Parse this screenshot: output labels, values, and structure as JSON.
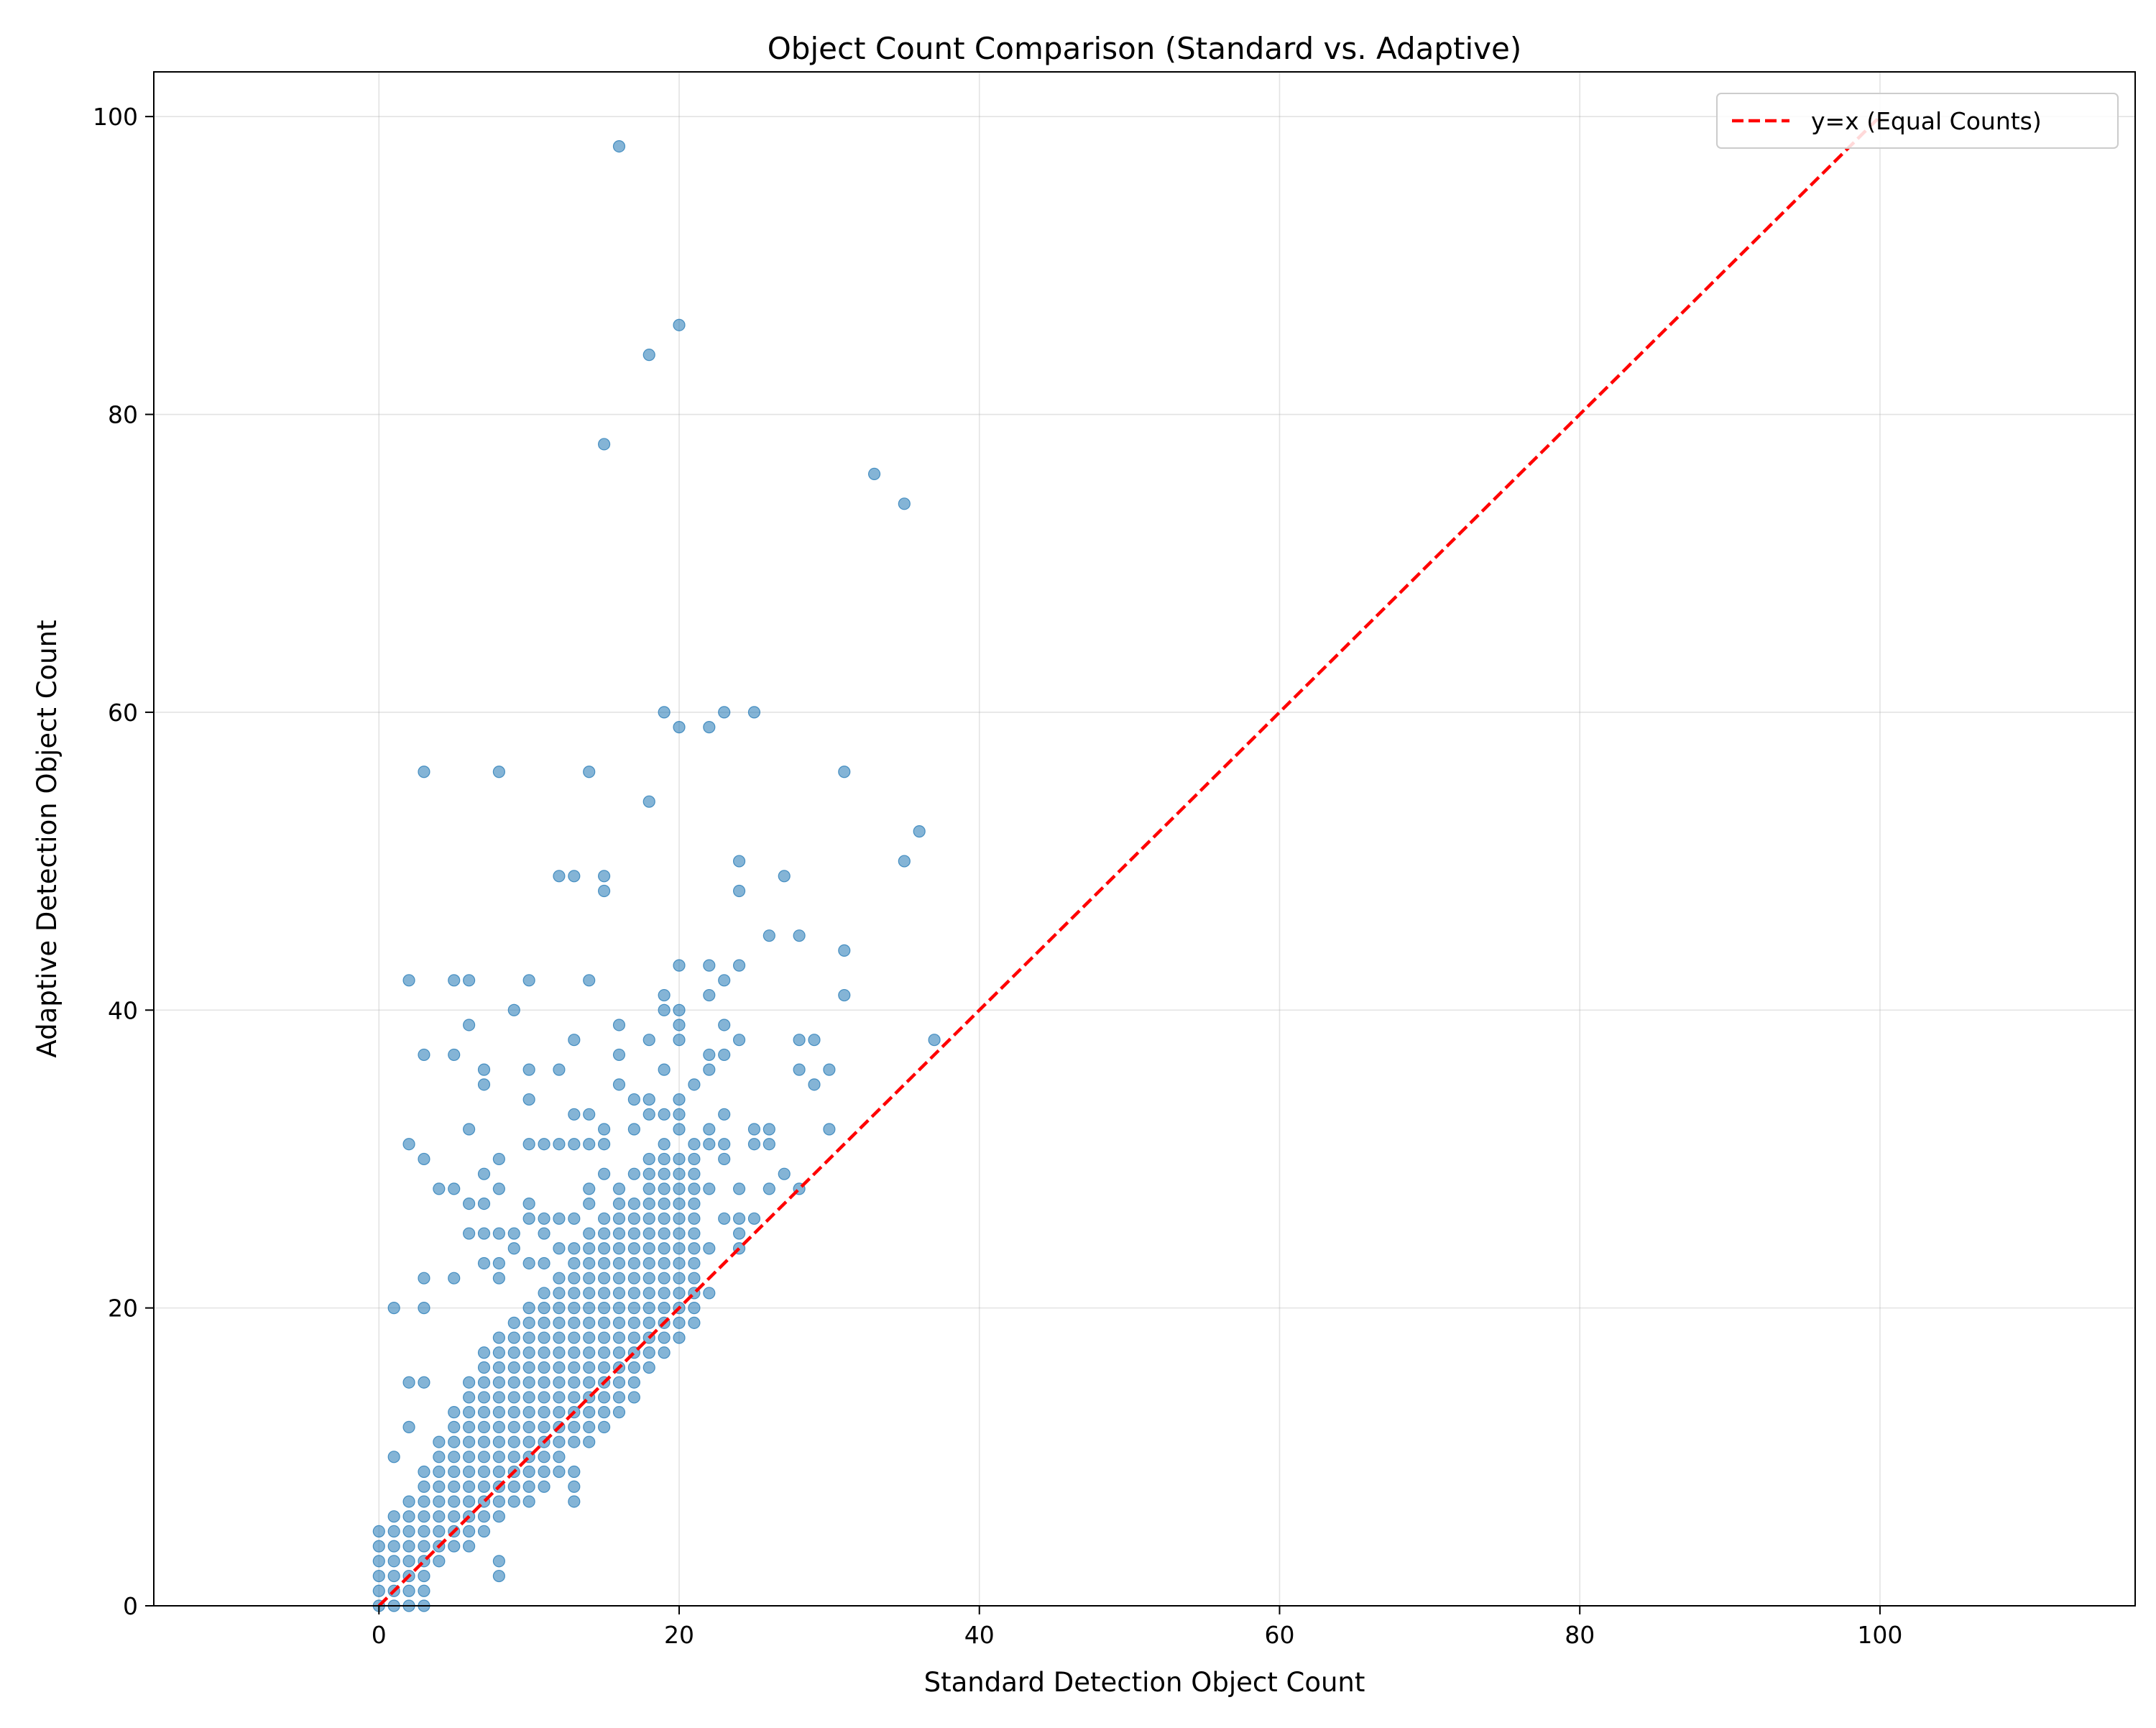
{
  "chart_data": {
    "type": "scatter",
    "title": "Object Count Comparison (Standard vs. Adaptive)",
    "xlabel": "Standard Detection Object Count",
    "ylabel": "Adaptive Detection Object Count",
    "xlim": [
      -15,
      117
    ],
    "ylim": [
      0,
      103
    ],
    "xticks": [
      0,
      20,
      40,
      60,
      80,
      100
    ],
    "yticks": [
      0,
      20,
      40,
      60,
      80,
      100
    ],
    "grid": true,
    "legend": {
      "placement": "top-right",
      "entries": [
        "y=x (Equal Counts)"
      ]
    },
    "reference_line": {
      "label": "y=x (Equal Counts)",
      "color": "#ff0000",
      "style": "dashed",
      "from": [
        0,
        0
      ],
      "to": [
        100,
        100
      ]
    },
    "colors": {
      "points": "#1f77b4",
      "reference": "#ff0000"
    },
    "outliers": [
      [
        16,
        98
      ],
      [
        20,
        86
      ],
      [
        18,
        84
      ],
      [
        15,
        78
      ],
      [
        33,
        76
      ],
      [
        35,
        74
      ],
      [
        19,
        60
      ],
      [
        23,
        60
      ],
      [
        25,
        60
      ],
      [
        20,
        59
      ],
      [
        22,
        59
      ],
      [
        3,
        56
      ],
      [
        8,
        56
      ],
      [
        14,
        56
      ],
      [
        31,
        56
      ],
      [
        18,
        54
      ],
      [
        36,
        52
      ],
      [
        24,
        50
      ],
      [
        35,
        50
      ],
      [
        12,
        49
      ],
      [
        13,
        49
      ],
      [
        15,
        49
      ],
      [
        27,
        49
      ],
      [
        15,
        48
      ],
      [
        24,
        48
      ],
      [
        26,
        45
      ],
      [
        28,
        45
      ],
      [
        31,
        44
      ],
      [
        20,
        43
      ],
      [
        22,
        43
      ],
      [
        24,
        43
      ],
      [
        2,
        42
      ],
      [
        5,
        42
      ],
      [
        6,
        42
      ],
      [
        10,
        42
      ],
      [
        14,
        42
      ],
      [
        23,
        42
      ],
      [
        19,
        41
      ],
      [
        22,
        41
      ],
      [
        31,
        41
      ],
      [
        9,
        40
      ],
      [
        19,
        40
      ],
      [
        20,
        40
      ],
      [
        6,
        39
      ],
      [
        16,
        39
      ],
      [
        20,
        39
      ],
      [
        23,
        39
      ],
      [
        13,
        38
      ],
      [
        18,
        38
      ],
      [
        20,
        38
      ],
      [
        24,
        38
      ],
      [
        28,
        38
      ],
      [
        29,
        38
      ],
      [
        37,
        38
      ],
      [
        3,
        37
      ],
      [
        5,
        37
      ],
      [
        16,
        37
      ],
      [
        22,
        37
      ],
      [
        23,
        37
      ],
      [
        7,
        36
      ],
      [
        10,
        36
      ],
      [
        12,
        36
      ],
      [
        19,
        36
      ],
      [
        22,
        36
      ],
      [
        28,
        36
      ],
      [
        30,
        36
      ],
      [
        7,
        35
      ],
      [
        16,
        35
      ],
      [
        21,
        35
      ],
      [
        29,
        35
      ],
      [
        10,
        34
      ],
      [
        17,
        34
      ],
      [
        18,
        34
      ],
      [
        20,
        34
      ],
      [
        13,
        33
      ],
      [
        14,
        33
      ],
      [
        18,
        33
      ],
      [
        19,
        33
      ],
      [
        20,
        33
      ],
      [
        23,
        33
      ],
      [
        6,
        32
      ],
      [
        15,
        32
      ],
      [
        17,
        32
      ],
      [
        20,
        32
      ],
      [
        22,
        32
      ],
      [
        25,
        32
      ],
      [
        26,
        32
      ],
      [
        30,
        32
      ],
      [
        2,
        31
      ],
      [
        10,
        31
      ],
      [
        11,
        31
      ],
      [
        12,
        31
      ],
      [
        13,
        31
      ],
      [
        14,
        31
      ],
      [
        15,
        31
      ],
      [
        19,
        31
      ],
      [
        22,
        31
      ],
      [
        23,
        31
      ],
      [
        25,
        31
      ],
      [
        26,
        31
      ],
      [
        3,
        30
      ],
      [
        8,
        30
      ],
      [
        18,
        30
      ],
      [
        19,
        30
      ],
      [
        23,
        30
      ],
      [
        7,
        29
      ],
      [
        15,
        29
      ],
      [
        17,
        29
      ],
      [
        18,
        29
      ],
      [
        19,
        29
      ],
      [
        27,
        29
      ],
      [
        4,
        28
      ],
      [
        5,
        28
      ],
      [
        8,
        28
      ],
      [
        14,
        28
      ],
      [
        16,
        28
      ],
      [
        22,
        28
      ],
      [
        24,
        28
      ],
      [
        26,
        28
      ],
      [
        28,
        28
      ],
      [
        6,
        27
      ],
      [
        7,
        27
      ],
      [
        10,
        27
      ],
      [
        14,
        27
      ],
      [
        16,
        27
      ],
      [
        19,
        27
      ],
      [
        20,
        27
      ],
      [
        10,
        26
      ],
      [
        11,
        26
      ],
      [
        12,
        26
      ],
      [
        13,
        26
      ],
      [
        15,
        26
      ],
      [
        17,
        26
      ],
      [
        18,
        26
      ],
      [
        20,
        26
      ],
      [
        23,
        26
      ],
      [
        24,
        26
      ],
      [
        25,
        26
      ],
      [
        6,
        25
      ],
      [
        7,
        25
      ],
      [
        8,
        25
      ],
      [
        9,
        25
      ],
      [
        11,
        25
      ],
      [
        14,
        25
      ],
      [
        16,
        25
      ],
      [
        19,
        25
      ],
      [
        24,
        25
      ],
      [
        9,
        24
      ],
      [
        12,
        24
      ],
      [
        13,
        24
      ],
      [
        17,
        24
      ],
      [
        21,
        24
      ],
      [
        22,
        24
      ],
      [
        24,
        24
      ],
      [
        7,
        23
      ],
      [
        8,
        23
      ],
      [
        10,
        23
      ],
      [
        11,
        23
      ],
      [
        15,
        23
      ],
      [
        18,
        23
      ],
      [
        21,
        23
      ],
      [
        3,
        22
      ],
      [
        5,
        22
      ],
      [
        8,
        22
      ],
      [
        12,
        22
      ],
      [
        16,
        22
      ],
      [
        18,
        22
      ],
      [
        20,
        22
      ],
      [
        1,
        20
      ],
      [
        3,
        20
      ],
      [
        2,
        15
      ],
      [
        3,
        15
      ],
      [
        2,
        12
      ],
      [
        1,
        10
      ],
      [
        8,
        3
      ],
      [
        8,
        2
      ],
      [
        13,
        9
      ],
      [
        13,
        8
      ],
      [
        13,
        7
      ],
      [
        10,
        7
      ],
      [
        11,
        8
      ],
      [
        12,
        9
      ],
      [
        16,
        13
      ],
      [
        17,
        14
      ],
      [
        15,
        12
      ],
      [
        14,
        11
      ],
      [
        13,
        11
      ],
      [
        19,
        17
      ],
      [
        19,
        18
      ],
      [
        20,
        19
      ],
      [
        22,
        21
      ],
      [
        21,
        21
      ]
    ]
  }
}
